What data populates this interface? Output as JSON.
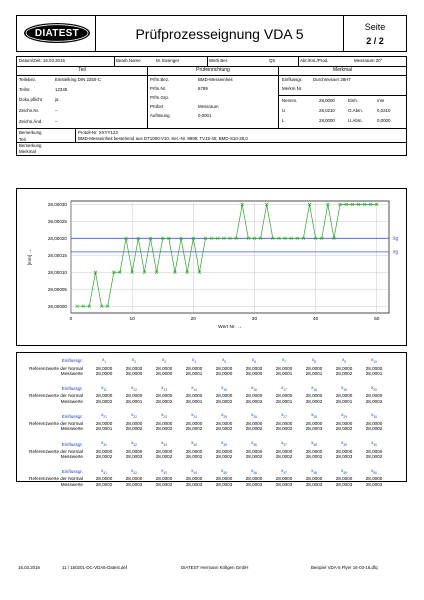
{
  "header": {
    "logo_text": "DIATEST",
    "title": "Prüfprozesseignung VDA 5",
    "page_label": "Seite",
    "page_number": "2 / 2"
  },
  "info_row": {
    "datum": "Datum/Zeit: 16.03.2016",
    "bearb_label": "Bearb.Name",
    "bearb_value": "M. Essinger",
    "werk_label": "Werk Ber.",
    "werk_value": "QS",
    "abt_label": "Abt./Kst./Prod.",
    "abt_value": "Messraum 20°"
  },
  "sections": {
    "teil": "Teil",
    "pruef": "Prüfeinrichtung",
    "merkmal": "Merkmal"
  },
  "teil": {
    "rows": [
      {
        "label": "Teilebez.",
        "value": "Einstellring DIN 2250-C"
      },
      {
        "label": "Teilnr.",
        "value": "12345"
      },
      {
        "label": "Doku.pflicht",
        "value": "ja"
      },
      {
        "label": "Zeichn.Nr.",
        "value": "--"
      },
      {
        "label": "Zeichn.Änd.",
        "value": "--"
      }
    ]
  },
  "pruef": {
    "rows": [
      {
        "label": "Prfm.Bez.",
        "value": "BMD-Messeinheit"
      },
      {
        "label": "Prfm.Nr.",
        "value": "6789"
      },
      {
        "label": "Prfm.Grp.",
        "value": ""
      },
      {
        "label": "Prüfort",
        "value": "Messraum"
      },
      {
        "label": "Auflösung",
        "value": "0,0001"
      }
    ]
  },
  "merkmal": {
    "einflussgr_label": "Einflussgr.",
    "einflussgr_value": "Durchmesser 28H7",
    "merkm_label": "Merkm.Nr.",
    "nennm_label": "Nennm.",
    "nennm_value": "28,0000",
    "einh_label": "Einh.",
    "einh_value": "mm",
    "u_label": "U",
    "u_value": "28,0210",
    "oabm_label": "O.Abm.",
    "oabm_value": "0,0210",
    "l_label": "L",
    "l_value": "28,0000",
    "uabm_label": "U.Abm.",
    "uabm_value": "0,0000"
  },
  "bemerkung": {
    "label1": "Bemerkung",
    "label2": "Teil",
    "line1": "Protoll-Nr. XXYY123",
    "line2": "BMD-Messeinheit bestehend aus DT1000-V10, Ser.-Nr. 9999; TV15-45; BMD-S10-28,0",
    "label3": "Bemerkung",
    "label4": "Merkmal"
  },
  "chart_data": {
    "type": "line",
    "xlabel": "Wert Nr. →",
    "ylabel": "[mm] →",
    "xlim": [
      0,
      52
    ],
    "ylim": [
      27.99998,
      28.00031
    ],
    "xticks": [
      0,
      10,
      20,
      30,
      40,
      50
    ],
    "yticks": [
      "28,00000",
      "28,00005",
      "28,00010",
      "28,00015",
      "28,00020",
      "28,00025",
      "28,00030"
    ],
    "reference_lines": [
      {
        "name": "x̄g",
        "value": 28.0002,
        "color": "#3b5bd6"
      },
      {
        "name": "x̄g",
        "value": 28.00016,
        "color": "#3b5bd6"
      }
    ],
    "series": [
      {
        "color": "#2ea12e",
        "x": [
          1,
          2,
          3,
          4,
          5,
          6,
          7,
          8,
          9,
          10,
          11,
          12,
          13,
          14,
          15,
          16,
          17,
          18,
          19,
          20,
          21,
          22,
          23,
          24,
          25,
          26,
          27,
          28,
          29,
          30,
          31,
          32,
          33,
          34,
          35,
          36,
          37,
          38,
          39,
          40,
          41,
          42,
          43,
          44,
          45,
          46,
          47,
          48,
          49,
          50
        ],
        "values": [
          28.0,
          28.0,
          28.0,
          28.0001,
          28.0,
          28.0,
          28.0001,
          28.0001,
          28.0002,
          28.0001,
          28.0002,
          28.0001,
          28.0002,
          28.0001,
          28.0002,
          28.0002,
          28.0001,
          28.0002,
          28.0001,
          28.0002,
          28.0001,
          28.0002,
          28.0002,
          28.0002,
          28.0002,
          28.0002,
          28.0002,
          28.0003,
          28.0002,
          28.0002,
          28.0002,
          28.0003,
          28.0002,
          28.0002,
          28.0002,
          28.0002,
          28.0002,
          28.0002,
          28.0003,
          28.0002,
          28.0002,
          28.0003,
          28.0002,
          28.0003,
          28.0003,
          28.0003,
          28.0003,
          28.0003,
          28.0003,
          28.0003
        ]
      }
    ]
  },
  "values_table": {
    "label_einfluss": "Einflussgr.",
    "label_ref": "Referenzwerte der Normal",
    "label_mess": "Messwerte",
    "blocks": [
      {
        "idx": [
          "1",
          "2",
          "3",
          "4",
          "5",
          "6",
          "7",
          "8",
          "9",
          "10"
        ],
        "ref": [
          "28,0000",
          "28,0000",
          "28,0000",
          "28,0000",
          "28,0000",
          "28,0000",
          "28,0000",
          "28,0000",
          "28,0000",
          "28,0000"
        ],
        "mess": [
          "28,0000",
          "28,0000",
          "28,0000",
          "28,0001",
          "28,0000",
          "28,0000",
          "28,0001",
          "28,0001",
          "28,0002",
          "28,0001"
        ]
      },
      {
        "idx": [
          "11",
          "12",
          "13",
          "14",
          "15",
          "16",
          "17",
          "18",
          "19",
          "20"
        ],
        "ref": [
          "28,0000",
          "28,0000",
          "28,0000",
          "28,0000",
          "28,0000",
          "28,0000",
          "28,0000",
          "28,0000",
          "28,0000",
          "28,0000"
        ],
        "mess": [
          "28,0002",
          "28,0001",
          "28,0002",
          "28,0001",
          "28,0002",
          "28,0002",
          "28,0001",
          "28,0002",
          "28,0001",
          "28,0002"
        ]
      },
      {
        "idx": [
          "21",
          "22",
          "23",
          "24",
          "25",
          "26",
          "27",
          "28",
          "29",
          "30"
        ],
        "ref": [
          "28,0000",
          "28,0000",
          "28,0000",
          "28,0000",
          "28,0000",
          "28,0000",
          "28,0000",
          "28,0000",
          "28,0000",
          "28,0000"
        ],
        "mess": [
          "28,0001",
          "28,0002",
          "28,0002",
          "28,0002",
          "28,0002",
          "28,0002",
          "28,0002",
          "28,0003",
          "28,0002",
          "28,0002"
        ]
      },
      {
        "idx": [
          "31",
          "32",
          "33",
          "34",
          "35",
          "36",
          "37",
          "38",
          "39",
          "40"
        ],
        "ref": [
          "28,0000",
          "28,0000",
          "28,0000",
          "28,0000",
          "28,0000",
          "28,0000",
          "28,0000",
          "28,0000",
          "28,0000",
          "28,0000"
        ],
        "mess": [
          "28,0002",
          "28,0003",
          "28,0002",
          "28,0002",
          "28,0002",
          "28,0002",
          "28,0002",
          "28,0002",
          "28,0003",
          "28,0002"
        ]
      },
      {
        "idx": [
          "41",
          "42",
          "43",
          "44",
          "45",
          "46",
          "47",
          "48",
          "49",
          "50"
        ],
        "ref": [
          "28,0000",
          "28,0000",
          "28,0000",
          "28,0000",
          "28,0000",
          "28,0000",
          "28,0000",
          "28,0000",
          "28,0000",
          "28,0000"
        ],
        "mess": [
          "28,0002",
          "28,0003",
          "28,0002",
          "28,0003",
          "28,0003",
          "28,0003",
          "28,0003",
          "28,0003",
          "28,0003",
          "28,0003"
        ]
      }
    ]
  },
  "footer": {
    "date": "16.03.2016",
    "file": "11 / 160201-DC-VDA5-Datest.def",
    "company": "DIATEST Hermann Költgen GmbH",
    "doc": "Beispiel VDA-5 Flyer 16-03-16.dfq"
  }
}
